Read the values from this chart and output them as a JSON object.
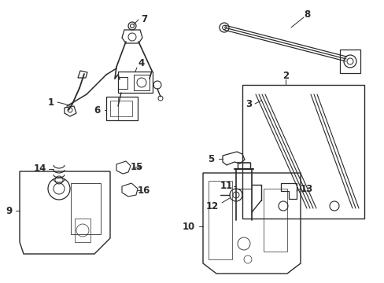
{
  "background_color": "#ffffff",
  "fig_width": 4.89,
  "fig_height": 3.6,
  "dpi": 100,
  "line_color": "#2a2a2a",
  "font_size": 8.0,
  "font_bold": true
}
